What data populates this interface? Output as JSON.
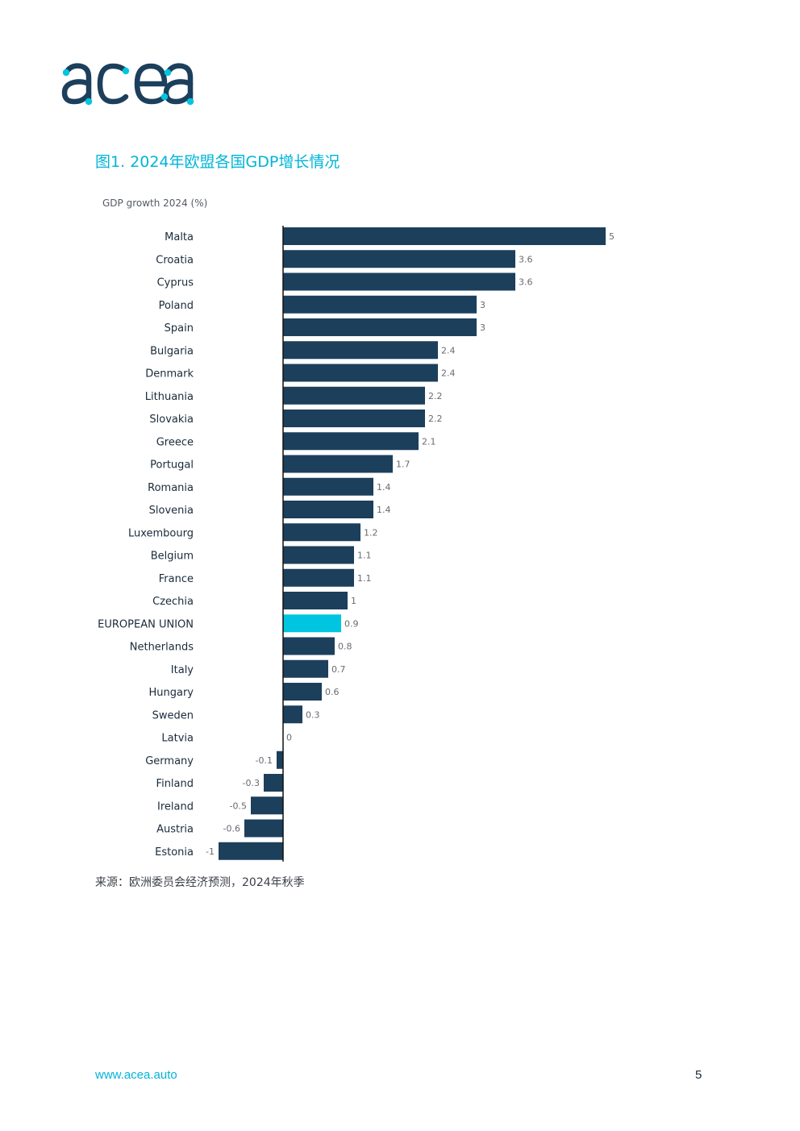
{
  "header": {
    "logo_text": "acea"
  },
  "figure_title": "图1. 2024年欧盟各国GDP增长情况",
  "colors": {
    "bar": "#1c3f5c",
    "highlight": "#00c5e0",
    "accent": "#00b4d8"
  },
  "chart_data": {
    "type": "bar",
    "orientation": "horizontal",
    "subtitle": "GDP growth 2024 (%)",
    "xlim": [
      -1,
      5
    ],
    "grid": false,
    "categories": [
      "Malta",
      "Croatia",
      "Cyprus",
      "Poland",
      "Spain",
      "Bulgaria",
      "Denmark",
      "Lithuania",
      "Slovakia",
      "Greece",
      "Portugal",
      "Romania",
      "Slovenia",
      "Luxembourg",
      "Belgium",
      "France",
      "Czechia",
      "EUROPEAN UNION",
      "Netherlands",
      "Italy",
      "Hungary",
      "Sweden",
      "Latvia",
      "Germany",
      "Finland",
      "Ireland",
      "Austria",
      "Estonia"
    ],
    "values": [
      5,
      3.6,
      3.6,
      3,
      3,
      2.4,
      2.4,
      2.2,
      2.2,
      2.1,
      1.7,
      1.4,
      1.4,
      1.2,
      1.1,
      1.1,
      1,
      0.9,
      0.8,
      0.7,
      0.6,
      0.3,
      0,
      -0.1,
      -0.3,
      -0.5,
      -0.6,
      -1
    ],
    "value_labels": [
      "5",
      "3.6",
      "3.6",
      "3",
      "3",
      "2.4",
      "2.4",
      "2.2",
      "2.2",
      "2.1",
      "1.7",
      "1.4",
      "1.4",
      "1.2",
      "1.1",
      "1.1",
      "1",
      "0.9",
      "0.8",
      "0.7",
      "0.6",
      "0.3",
      "0",
      "-0.1",
      "-0.3",
      "-0.5",
      "-0.6",
      "-1"
    ],
    "highlight_category": "EUROPEAN UNION"
  },
  "source_note": "来源：欧洲委员会经济预测，2024年秋季",
  "footer": {
    "url": "www.acea.auto",
    "page_number": "5"
  }
}
